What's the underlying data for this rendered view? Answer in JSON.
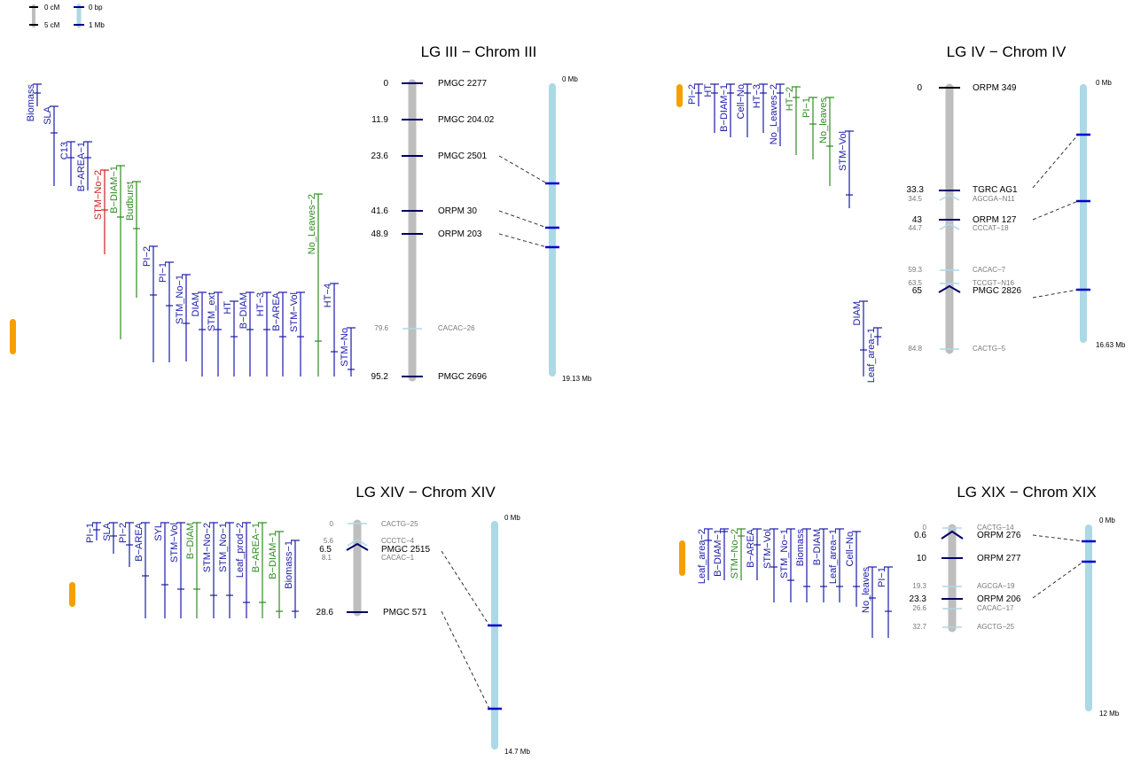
{
  "legend": {
    "items": [
      "0 cM",
      "5 cM",
      "0 bp",
      "1 Mb"
    ]
  },
  "colors": {
    "blue": "#1a1aaa",
    "green": "#2e8b20",
    "red": "#cc1f1f",
    "lg_bar": "#bebebe",
    "chrom_bar": "#add8e6",
    "main_marker": "#000066",
    "minor_marker": "#add8e6",
    "minor_text": "#777777",
    "link_marker": "#0000cc",
    "highlight": "#f5a000"
  },
  "panels": [
    {
      "title": "LG  III − Chrom III",
      "physical_start": "0 Mb",
      "physical_end": "19.13 Mb",
      "markers": [
        {
          "pos": "0",
          "name": "PMGC 2277",
          "major": true
        },
        {
          "pos": "11.9",
          "name": "PMGC 204.02",
          "major": true
        },
        {
          "pos": "23.6",
          "name": "PMGC 2501",
          "major": true
        },
        {
          "pos": "41.6",
          "name": "ORPM 30",
          "major": true
        },
        {
          "pos": "48.9",
          "name": "ORPM 203",
          "major": true
        },
        {
          "pos": "79.6",
          "name": "CACAC−26",
          "major": false
        },
        {
          "pos": "95.2",
          "name": "PMGC 2696",
          "major": true
        }
      ],
      "qtls": [
        {
          "label": "Biomass",
          "color": "blue"
        },
        {
          "label": "SLA",
          "color": "blue"
        },
        {
          "label": "C13",
          "color": "blue"
        },
        {
          "label": "B−AREA−1",
          "color": "blue"
        },
        {
          "label": "STM−No−2",
          "color": "red"
        },
        {
          "label": "B−DIAM−1",
          "color": "green"
        },
        {
          "label": "Budburst",
          "color": "green"
        },
        {
          "label": "PI−2",
          "color": "blue"
        },
        {
          "label": "PI−1",
          "color": "blue"
        },
        {
          "label": "STM_No−1",
          "color": "blue"
        },
        {
          "label": "DIAM",
          "color": "blue"
        },
        {
          "label": "STM_ext",
          "color": "blue"
        },
        {
          "label": "HT",
          "color": "blue"
        },
        {
          "label": "B−DIAM",
          "color": "blue"
        },
        {
          "label": "HT−3",
          "color": "blue"
        },
        {
          "label": "B−AREA",
          "color": "blue"
        },
        {
          "label": "STM−Vol",
          "color": "blue"
        },
        {
          "label": "No_Leaves−2",
          "color": "green"
        },
        {
          "label": "HT−4",
          "color": "blue"
        },
        {
          "label": "STM−No",
          "color": "blue"
        }
      ]
    },
    {
      "title": "LG  IV − Chrom IV",
      "physical_start": "0 Mb",
      "physical_end": "16.63 Mb",
      "markers": [
        {
          "pos": "0",
          "name": "ORPM 349",
          "major": true
        },
        {
          "pos": "33.3",
          "name": "TGRC AG1",
          "major": true
        },
        {
          "pos": "34.5",
          "name": "AGCGA−N11",
          "major": false
        },
        {
          "pos": "43",
          "name": "ORPM 127",
          "major": true
        },
        {
          "pos": "44.7",
          "name": "CCCAT−18",
          "major": false
        },
        {
          "pos": "59.3",
          "name": "CACAC−7",
          "major": false
        },
        {
          "pos": "63.5",
          "name": "TCCGT−N16",
          "major": false
        },
        {
          "pos": "65",
          "name": "PMGC 2826",
          "major": true
        },
        {
          "pos": "84.8",
          "name": "CACTG−5",
          "major": false
        }
      ],
      "qtls": [
        {
          "label": "PI−2",
          "color": "blue"
        },
        {
          "label": "HT",
          "color": "blue"
        },
        {
          "label": "B−DIAM−1",
          "color": "blue"
        },
        {
          "label": "Cell−No",
          "color": "blue"
        },
        {
          "label": "HT−3",
          "color": "blue"
        },
        {
          "label": "No_Leaves−2",
          "color": "blue"
        },
        {
          "label": "HT−2",
          "color": "green"
        },
        {
          "label": "PI−1",
          "color": "green"
        },
        {
          "label": "No_leaves",
          "color": "green"
        },
        {
          "label": "STM−Vol",
          "color": "blue"
        },
        {
          "label": "DIAM",
          "color": "blue"
        },
        {
          "label": "Leaf_area−1",
          "color": "blue"
        }
      ]
    },
    {
      "title": "LG  XIV − Chrom XIV",
      "physical_start": "0 Mb",
      "physical_end": "14.7  Mb",
      "markers": [
        {
          "pos": "0",
          "name": "CACTG−25",
          "major": false
        },
        {
          "pos": "5.6",
          "name": "CCCTC−4",
          "major": false
        },
        {
          "pos": "6.5",
          "name": "PMGC 2515",
          "major": true
        },
        {
          "pos": "8.1",
          "name": "CACAC−1",
          "major": false
        },
        {
          "pos": "28.6",
          "name": "PMGC 571",
          "major": true
        }
      ],
      "qtls": [
        {
          "label": "PI−1",
          "color": "blue"
        },
        {
          "label": "SLA",
          "color": "blue"
        },
        {
          "label": "PI−2",
          "color": "blue"
        },
        {
          "label": "B−AREA",
          "color": "blue"
        },
        {
          "label": "SYL",
          "color": "blue"
        },
        {
          "label": "STM−Vol",
          "color": "blue"
        },
        {
          "label": "B−DIAM",
          "color": "green"
        },
        {
          "label": "STM−No−2",
          "color": "blue"
        },
        {
          "label": "STM_No−1",
          "color": "blue"
        },
        {
          "label": "Leaf_prod−2",
          "color": "blue"
        },
        {
          "label": "B−AREA−1",
          "color": "green"
        },
        {
          "label": "B−DIAM−1",
          "color": "green"
        },
        {
          "label": "Biomass−1",
          "color": "blue"
        }
      ]
    },
    {
      "title": "LG  XIX − Chrom XIX",
      "physical_start": "0 Mb",
      "physical_end": "12  Mb",
      "markers": [
        {
          "pos": "0",
          "name": "CACTG−14",
          "major": false
        },
        {
          "pos": "0.6",
          "name": "ORPM 276",
          "major": true
        },
        {
          "pos": "10",
          "name": "ORPM 277",
          "major": true
        },
        {
          "pos": "19.3",
          "name": "AGCGA−19",
          "major": false
        },
        {
          "pos": "23.3",
          "name": "ORPM 206",
          "major": true
        },
        {
          "pos": "26.6",
          "name": "CACAC−17",
          "major": false
        },
        {
          "pos": "32.7",
          "name": "AGCTG−25",
          "major": false
        }
      ],
      "qtls": [
        {
          "label": "Leaf_area−2",
          "color": "blue"
        },
        {
          "label": "B−DIAM−1",
          "color": "blue"
        },
        {
          "label": "STM−No−2",
          "color": "green"
        },
        {
          "label": "B−AREA",
          "color": "blue"
        },
        {
          "label": "STM−Vol",
          "color": "blue"
        },
        {
          "label": "STM_No−1",
          "color": "blue"
        },
        {
          "label": "Biomass",
          "color": "blue"
        },
        {
          "label": "B−DIAM",
          "color": "blue"
        },
        {
          "label": "Leaf_area−1",
          "color": "blue"
        },
        {
          "label": "Cell−No",
          "color": "blue"
        },
        {
          "label": "No_leaves",
          "color": "blue"
        },
        {
          "label": "PI−1",
          "color": "blue"
        }
      ]
    }
  ]
}
